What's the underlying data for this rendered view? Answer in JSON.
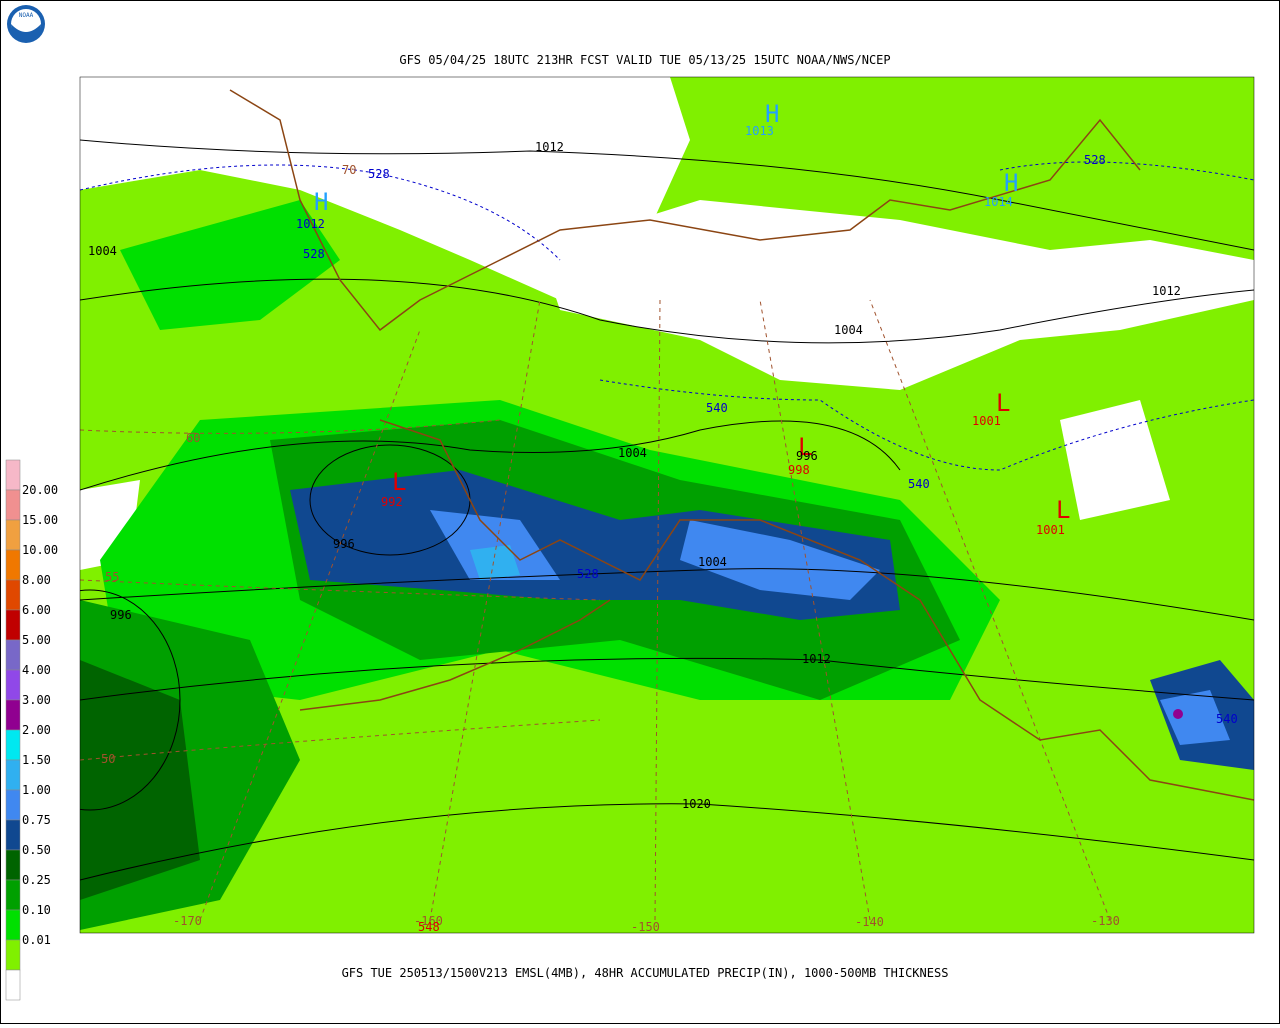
{
  "header": {
    "title": "GFS 05/04/25 18UTC 213HR FCST VALID TUE 05/13/25 15UTC NOAA/NWS/NCEP"
  },
  "footer": {
    "caption": "GFS TUE 250513/1500V213 EMSL(4MB), 48HR ACCUMULATED PRECIP(IN), 1000-500MB THICKNESS"
  },
  "logo": {
    "text": "NOAA"
  },
  "legend": {
    "labels": [
      "20.00",
      "15.00",
      "10.00",
      "8.00",
      "6.00",
      "5.00",
      "4.00",
      "3.00",
      "2.00",
      "1.50",
      "1.00",
      "0.75",
      "0.50",
      "0.25",
      "0.10",
      "0.01"
    ],
    "colors": [
      "#f6b8c8",
      "#f09090",
      "#f0a040",
      "#f07800",
      "#e04800",
      "#c00000",
      "#7868c8",
      "#9048e8",
      "#900090",
      "#00e8f0",
      "#30b0f0",
      "#4088f0",
      "#104890",
      "#006400",
      "#00a000",
      "#00e000",
      "#80f000",
      "#ffffff"
    ]
  },
  "map": {
    "labels": [
      {
        "text": "1012",
        "color": "#000000"
      },
      {
        "text": "528",
        "color": "#0000cc"
      },
      {
        "text": "70",
        "color": "#a0522d"
      },
      {
        "text": "1004",
        "color": "#000000"
      },
      {
        "text": "1012",
        "color": "#0000cc"
      },
      {
        "text": "528",
        "color": "#0000cc"
      },
      {
        "text": "H",
        "color": "#22a0ff"
      },
      {
        "text": "H",
        "color": "#22a0ff"
      },
      {
        "text": "1013",
        "color": "#22a0ff"
      },
      {
        "text": "H",
        "color": "#22a0ff"
      },
      {
        "text": "1014",
        "color": "#22a0ff"
      },
      {
        "text": "528",
        "color": "#0000cc"
      },
      {
        "text": "1012",
        "color": "#000000"
      },
      {
        "text": "1004",
        "color": "#000000"
      },
      {
        "text": "540",
        "color": "#0000cc"
      },
      {
        "text": "L",
        "color": "#e00000"
      },
      {
        "text": "1001",
        "color": "#e00000"
      },
      {
        "text": "60",
        "color": "#a0522d"
      },
      {
        "text": "1004",
        "color": "#000000"
      },
      {
        "text": "L",
        "color": "#e00000"
      },
      {
        "text": "996",
        "color": "#000000"
      },
      {
        "text": "998",
        "color": "#e00000"
      },
      {
        "text": "540",
        "color": "#0000cc"
      },
      {
        "text": "L",
        "color": "#e00000"
      },
      {
        "text": "992",
        "color": "#e00000"
      },
      {
        "text": "L",
        "color": "#e00000"
      },
      {
        "text": "1001",
        "color": "#e00000"
      },
      {
        "text": "996",
        "color": "#000000"
      },
      {
        "text": "528",
        "color": "#0000cc"
      },
      {
        "text": "1004",
        "color": "#000000"
      },
      {
        "text": "55",
        "color": "#a0522d"
      },
      {
        "text": "996",
        "color": "#000000"
      },
      {
        "text": "1012",
        "color": "#000000"
      },
      {
        "text": "540",
        "color": "#0000cc"
      },
      {
        "text": "50",
        "color": "#a0522d"
      },
      {
        "text": "1020",
        "color": "#000000"
      },
      {
        "text": "-170",
        "color": "#a0522d"
      },
      {
        "text": "-160",
        "color": "#a0522d"
      },
      {
        "text": "548",
        "color": "#e00000"
      },
      {
        "text": "-150",
        "color": "#a0522d"
      },
      {
        "text": "-140",
        "color": "#a0522d"
      },
      {
        "text": "-130",
        "color": "#a0522d"
      }
    ]
  }
}
